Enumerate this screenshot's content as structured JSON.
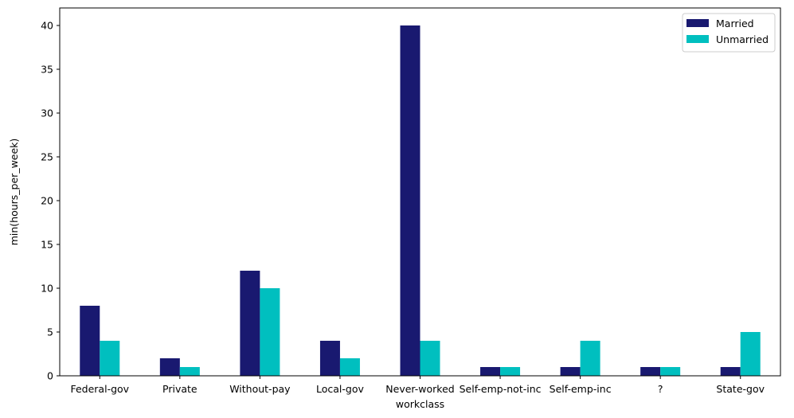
{
  "chart_data": {
    "type": "bar",
    "title": "",
    "xlabel": "workclass",
    "ylabel": "min(hours_per_week)",
    "categories": [
      " Federal-gov",
      " Private",
      " Without-pay",
      " Local-gov",
      " Never-worked",
      " Self-emp-not-inc",
      " Self-emp-inc",
      " ?",
      " State-gov"
    ],
    "series": [
      {
        "name": "Married",
        "color": "#191970",
        "values": [
          8,
          2,
          12,
          4,
          40,
          1,
          1,
          1,
          1
        ]
      },
      {
        "name": "Unmarried",
        "color": "#00BFBF",
        "values": [
          4,
          1,
          10,
          2,
          4,
          1,
          4,
          1,
          5
        ]
      }
    ],
    "ylim": [
      0,
      42
    ],
    "yticks": [
      0,
      5,
      10,
      15,
      20,
      25,
      30,
      35,
      40
    ],
    "grid": false,
    "legend_position": "top-right"
  }
}
